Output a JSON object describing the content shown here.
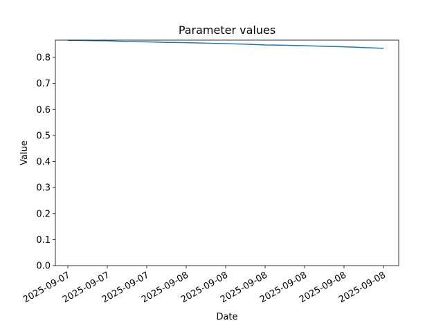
{
  "chart_data": {
    "type": "line",
    "title": "Parameter values",
    "x_label": "Date",
    "y_label": "Value",
    "x": [
      0,
      0.5,
      1,
      1.5,
      2,
      2.5,
      3,
      3.5,
      4,
      4.5,
      5,
      5.5,
      6,
      6.5,
      7,
      7.5,
      8
    ],
    "series": [
      {
        "name": "Value",
        "color": "#1f77b4",
        "values": [
          0.866,
          0.865,
          0.864,
          0.861,
          0.86,
          0.858,
          0.857,
          0.855,
          0.853,
          0.851,
          0.848,
          0.847,
          0.845,
          0.843,
          0.841,
          0.838,
          0.835
        ]
      }
    ],
    "xlim": [
      -0.316,
      8.386
    ],
    "xticks": [
      {
        "value": 0,
        "label": "2025-09-07"
      },
      {
        "value": 1,
        "label": "2025-09-07"
      },
      {
        "value": 2,
        "label": "2025-09-07"
      },
      {
        "value": 3,
        "label": "2025-09-08"
      },
      {
        "value": 4,
        "label": "2025-09-08"
      },
      {
        "value": 5,
        "label": "2025-09-08"
      },
      {
        "value": 6,
        "label": "2025-09-08"
      },
      {
        "value": 7,
        "label": "2025-09-08"
      },
      {
        "value": 8,
        "label": "2025-09-08"
      }
    ],
    "ylim": [
      0,
      0.8665
    ],
    "yticks": [
      {
        "value": 0,
        "label": "0.0"
      },
      0.1,
      0.2,
      0.3,
      0.4,
      0.5,
      0.6,
      0.7,
      0.8
    ],
    "grid": false
  }
}
